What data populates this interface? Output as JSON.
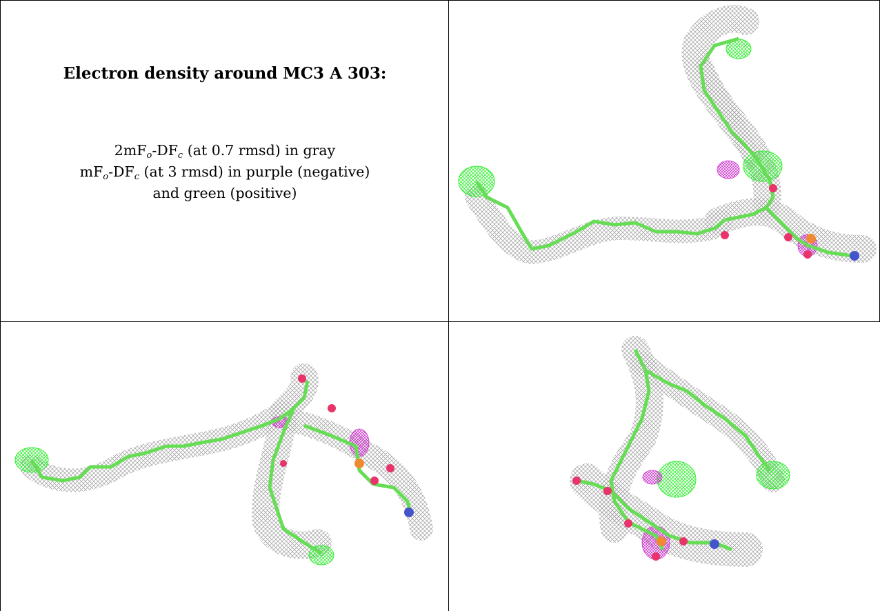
{
  "text_panel": {
    "title": "Electron density around MC3 A 303:",
    "line1": {
      "pre1": "2mF",
      "sub1": "o",
      "mid1": "-DF",
      "sub2": "c",
      "post": " (at 0.7 rmsd) in gray"
    },
    "line2": {
      "pre1": "mF",
      "sub1": "o",
      "mid1": "-DF",
      "sub2": "c",
      "post": " (at 3 rmsd) in purple (negative)"
    },
    "line3": "and green (positive)"
  },
  "colors": {
    "map_2fofc": "#9a9a9a",
    "map_positive": "#33ee33",
    "map_negative": "#cc33cc",
    "carbon": "#66dd55",
    "oxygen": "#e8336b",
    "phosphorus": "#f08a30",
    "nitrogen": "#4455cc"
  },
  "panels": [
    {
      "name": "view-top-right"
    },
    {
      "name": "view-bottom-left"
    },
    {
      "name": "view-bottom-right"
    }
  ]
}
